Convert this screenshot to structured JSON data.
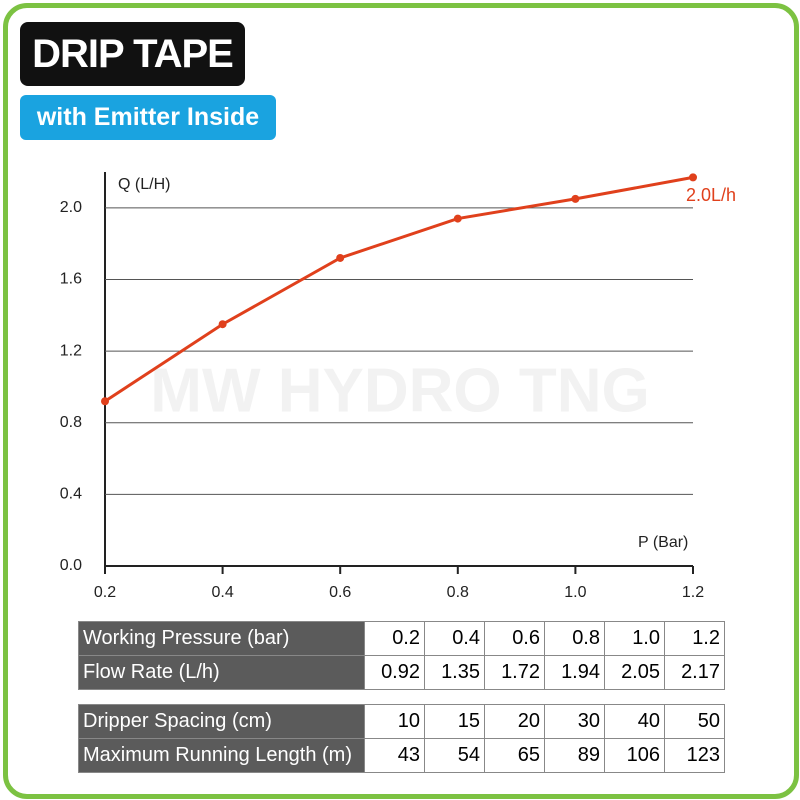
{
  "header": {
    "title": "DRIP TAPE",
    "subtitle": "with Emitter Inside"
  },
  "watermark": "MW HYDRO TNG",
  "chart_data": {
    "type": "line",
    "y_label": "Q (L/H)",
    "x_label": "P (Bar)",
    "x": [
      0.2,
      0.4,
      0.6,
      0.8,
      1.0,
      1.2
    ],
    "series": [
      {
        "name": "2.0L/h",
        "color": "#e0401c",
        "values": [
          0.92,
          1.35,
          1.72,
          1.94,
          2.05,
          2.17
        ]
      }
    ],
    "xlim": [
      0.2,
      1.2
    ],
    "ylim": [
      0,
      2.2
    ],
    "xticks": [
      0.2,
      0.4,
      0.6,
      0.8,
      {
        "value": 1,
        "label": "1.0"
      },
      1.2
    ],
    "yticks": [
      {
        "value": 0,
        "label": "0.0"
      },
      0.4,
      0.8,
      1.2,
      1.6,
      {
        "value": 2,
        "label": "2.0"
      }
    ],
    "grid": true
  },
  "tables": [
    {
      "rows": [
        [
          "Working Pressure (bar)",
          "0.2",
          "0.4",
          "0.6",
          "0.8",
          "1.0",
          "1.2"
        ],
        [
          "Flow Rate (L/h)",
          "0.92",
          "1.35",
          "1.72",
          "1.94",
          "2.05",
          "2.17"
        ]
      ]
    },
    {
      "rows": [
        [
          "Dripper Spacing (cm)",
          "10",
          "15",
          "20",
          "30",
          "40",
          "50"
        ],
        [
          "Maximum Running Length (m)",
          "43",
          "54",
          "65",
          "89",
          "106",
          "123"
        ]
      ]
    }
  ]
}
